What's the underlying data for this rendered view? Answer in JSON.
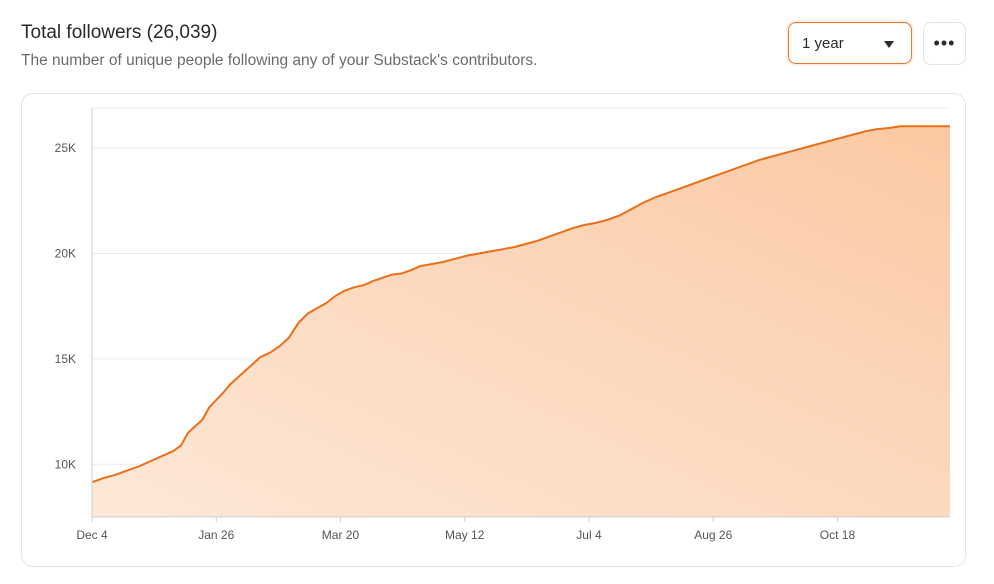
{
  "header": {
    "title": "Total followers (26,039)",
    "subtitle": "The number of unique people following any of your Substack's contributors."
  },
  "controls": {
    "range_value": "1 year",
    "caret_icon": "chevron-down-icon",
    "more_label": "•••",
    "more_icon": "more-horizontal-icon"
  },
  "colors": {
    "line": "#e8701a",
    "fill_top": "#fbc9a3",
    "fill_bottom": "#fde8d8",
    "grid": "#ececec",
    "axis": "#cfcfcf"
  },
  "chart_data": {
    "type": "area",
    "title": "Total followers (26,039)",
    "xlabel": "",
    "ylabel": "",
    "ylim": [
      7500,
      26900
    ],
    "xlim": [
      0,
      366
    ],
    "y_ticks": [
      {
        "value": 10000,
        "label": "10K"
      },
      {
        "value": 15000,
        "label": "15K"
      },
      {
        "value": 20000,
        "label": "20K"
      },
      {
        "value": 25000,
        "label": "25K"
      }
    ],
    "x_ticks": [
      {
        "value": 0,
        "label": "Dec 4"
      },
      {
        "value": 53,
        "label": "Jan 26"
      },
      {
        "value": 106,
        "label": "Mar 20"
      },
      {
        "value": 159,
        "label": "May 12"
      },
      {
        "value": 212,
        "label": "Jul 4"
      },
      {
        "value": 265,
        "label": "Aug 26"
      },
      {
        "value": 318,
        "label": "Oct 18"
      }
    ],
    "grid": true,
    "series": [
      {
        "name": "Total followers",
        "x": [
          0,
          5,
          10,
          15,
          20,
          25,
          30,
          35,
          38,
          41,
          44,
          47,
          50,
          53,
          56,
          59,
          62,
          65,
          68,
          72,
          76,
          80,
          84,
          88,
          92,
          96,
          100,
          104,
          108,
          112,
          116,
          120,
          124,
          128,
          132,
          136,
          140,
          145,
          150,
          155,
          160,
          165,
          170,
          175,
          180,
          185,
          190,
          195,
          200,
          205,
          210,
          215,
          220,
          225,
          230,
          235,
          240,
          245,
          250,
          255,
          260,
          265,
          270,
          275,
          280,
          285,
          290,
          295,
          300,
          305,
          310,
          315,
          320,
          325,
          330,
          335,
          340,
          345,
          350,
          355,
          360,
          366
        ],
        "values": [
          9150,
          9350,
          9500,
          9700,
          9900,
          10150,
          10400,
          10650,
          10900,
          11500,
          11800,
          12100,
          12700,
          13050,
          13400,
          13800,
          14100,
          14400,
          14700,
          15100,
          15300,
          15600,
          16000,
          16700,
          17150,
          17400,
          17650,
          18000,
          18250,
          18400,
          18500,
          18700,
          18850,
          19000,
          19050,
          19200,
          19400,
          19500,
          19600,
          19750,
          19900,
          20000,
          20100,
          20200,
          20300,
          20450,
          20600,
          20800,
          21000,
          21200,
          21350,
          21450,
          21600,
          21800,
          22100,
          22400,
          22650,
          22850,
          23050,
          23250,
          23450,
          23650,
          23850,
          24050,
          24250,
          24450,
          24600,
          24750,
          24900,
          25050,
          25200,
          25350,
          25500,
          25650,
          25800,
          25900,
          25950,
          26039,
          26039,
          26039,
          26039,
          26039
        ]
      }
    ]
  }
}
